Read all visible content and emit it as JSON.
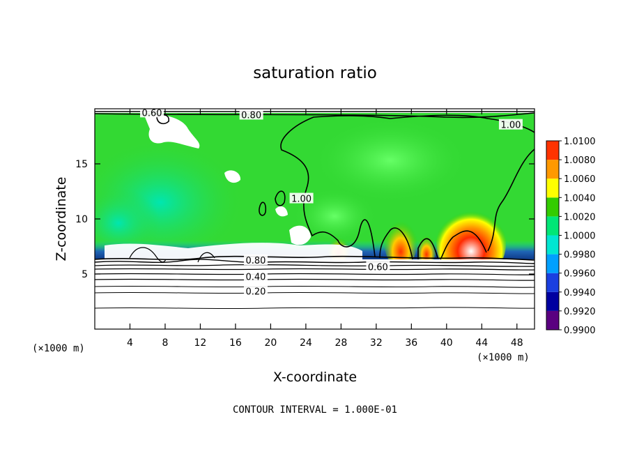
{
  "chart_data": {
    "type": "heatmap",
    "title": "saturation ratio",
    "xlabel": "X-coordinate",
    "ylabel": "Z-coordinate",
    "x_unit_label": "(×1000 m)",
    "y_unit_label": "(×1000 m)",
    "xlim": [
      0,
      50
    ],
    "ylim": [
      0,
      20
    ],
    "x_ticks": [
      4,
      8,
      12,
      16,
      20,
      24,
      28,
      32,
      36,
      40,
      44,
      48
    ],
    "y_ticks": [
      5,
      10,
      15
    ],
    "footer": "CONTOUR INTERVAL = 1.000E-01",
    "colorbar": {
      "levels": [
        "0.9900",
        "0.9920",
        "0.9940",
        "0.9960",
        "0.9980",
        "1.0000",
        "1.0020",
        "1.0040",
        "1.0060",
        "1.0080",
        "1.0100"
      ],
      "colors": [
        "#5a0080",
        "#0000a0",
        "#1a3fe0",
        "#00a0ff",
        "#00e6d2",
        "#00e676",
        "#33cc00",
        "#ffff00",
        "#ff9900",
        "#ff3300",
        "#ff9999"
      ]
    },
    "contour_labels": [
      {
        "text": "0.60",
        "x": 6.5,
        "z": 19.6
      },
      {
        "text": "0.80",
        "x": 17.8,
        "z": 19.4
      },
      {
        "text": "1.00",
        "x": 47.3,
        "z": 18.5
      },
      {
        "text": "1.00",
        "x": 23.5,
        "z": 11.8
      },
      {
        "text": "0.80",
        "x": 18.3,
        "z": 6.2
      },
      {
        "text": "0.60",
        "x": 32.2,
        "z": 5.6
      },
      {
        "text": "0.40",
        "x": 18.3,
        "z": 4.7
      },
      {
        "text": "0.20",
        "x": 18.3,
        "z": 3.4
      }
    ],
    "colors": {
      "background": "#33d933",
      "lower_layer": "#ffffff",
      "supersaturated_core": "#ff2a00"
    }
  }
}
